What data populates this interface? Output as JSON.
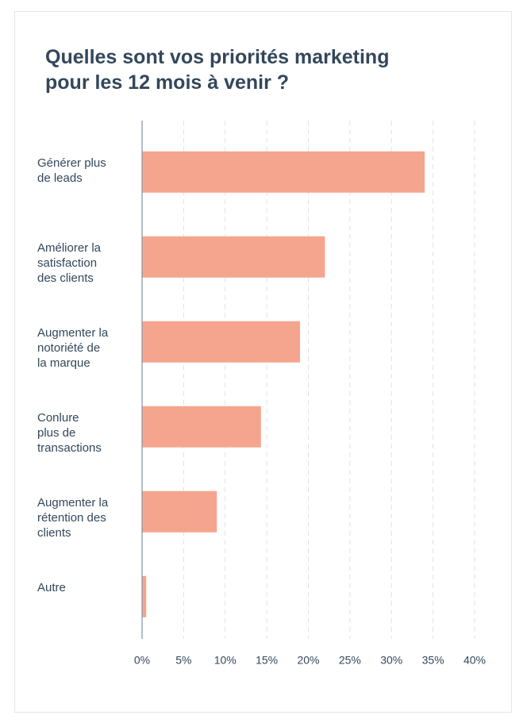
{
  "chart_data": {
    "type": "bar",
    "orientation": "horizontal",
    "title": "Quelles sont vos priorités marketing\npour les 12 mois à venir ?",
    "categories": [
      "Générer plus\nde leads",
      "Améliorer la\nsatisfaction\ndes clients",
      "Augmenter la\nnotoriété de\nla marque",
      "Conlure\nplus de\ntransactions",
      "Augmenter la\nrétention des\nclients",
      "Autre"
    ],
    "values": [
      34,
      22,
      19,
      14.3,
      9,
      0.5
    ],
    "color": "#f5a58e",
    "xlim": [
      0,
      40
    ],
    "xticks": [
      {
        "value": 0,
        "label": "0%"
      },
      {
        "value": 5,
        "label": "5%"
      },
      {
        "value": 10,
        "label": "10%"
      },
      {
        "value": 15,
        "label": "15%"
      },
      {
        "value": 20,
        "label": "20%"
      },
      {
        "value": 25,
        "label": "25%"
      },
      {
        "value": 30,
        "label": "30%"
      },
      {
        "value": 35,
        "label": "35%"
      },
      {
        "value": 40,
        "label": "40%"
      }
    ],
    "grid": true
  }
}
